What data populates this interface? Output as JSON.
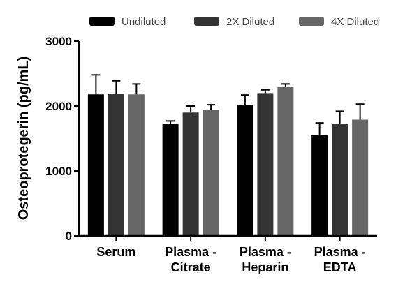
{
  "chart_data": {
    "type": "bar",
    "ylabel": "Osteoprotegerin (pg/mL)",
    "ylim": [
      0,
      3000
    ],
    "yticks": [
      "0",
      "1000",
      "2000",
      "3000"
    ],
    "ytick_values": [
      0,
      1000,
      2000,
      3000
    ],
    "categories": [
      [
        "Serum"
      ],
      [
        "Plasma -",
        "Citrate"
      ],
      [
        "Plasma -",
        "Heparin"
      ],
      [
        "Plasma -",
        "EDTA"
      ]
    ],
    "legend_position": "top",
    "series": [
      {
        "name": "Undiluted",
        "color": "#000000",
        "values": [
          2180,
          1730,
          2020,
          1550
        ],
        "errors": [
          300,
          40,
          150,
          190
        ]
      },
      {
        "name": "2X Diluted",
        "color": "#333333",
        "values": [
          2190,
          1900,
          2200,
          1720
        ],
        "errors": [
          200,
          100,
          50,
          200
        ]
      },
      {
        "name": "4X Diluted",
        "color": "#666666",
        "values": [
          2180,
          1940,
          2290,
          1790
        ],
        "errors": [
          160,
          80,
          50,
          240
        ]
      }
    ]
  }
}
